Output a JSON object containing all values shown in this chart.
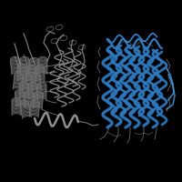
{
  "background_color": "#000000",
  "figure_size": [
    2.0,
    2.0
  ],
  "dpi": 100,
  "gray_color": "#909090",
  "gray_color2": "#707070",
  "blue_color": "#2f7bbf",
  "blue_color_dark": "#1a5a9a",
  "blue_color_light": "#4a9adf"
}
